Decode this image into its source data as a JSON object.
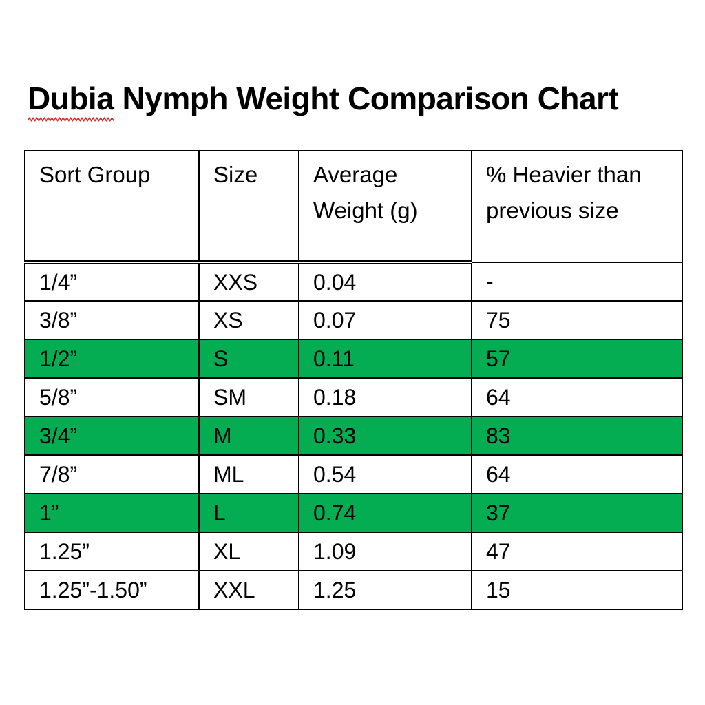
{
  "page": {
    "title": "Dubia Nymph Weight Comparison Chart",
    "title_word1": "Dubia",
    "title_rest": " Nymph Weight Comparison Chart"
  },
  "colors": {
    "background": "#FFFFFF",
    "text": "#000000",
    "table_border": "#000000",
    "highlight_green": "#04AC52",
    "squiggle_red": "#E32B24"
  },
  "chart_data": {
    "type": "table",
    "title": "Dubia Nymph Weight Comparison Chart",
    "columns": [
      "Sort Group",
      "Size",
      "Average Weight (g)",
      "% Heavier than previous size"
    ],
    "rows": [
      {
        "cells": [
          "1/4”",
          "XXS",
          "0.04",
          "-"
        ],
        "highlighted": false
      },
      {
        "cells": [
          "3/8”",
          "XS",
          "0.07",
          "75"
        ],
        "highlighted": false
      },
      {
        "cells": [
          "1/2”",
          "S",
          "0.11",
          "57"
        ],
        "highlighted": true
      },
      {
        "cells": [
          "5/8”",
          "SM",
          "0.18",
          "64"
        ],
        "highlighted": false
      },
      {
        "cells": [
          "3/4”",
          "M",
          "0.33",
          "83"
        ],
        "highlighted": true
      },
      {
        "cells": [
          "7/8”",
          "ML",
          "0.54",
          "64"
        ],
        "highlighted": false
      },
      {
        "cells": [
          "1”",
          "L",
          "0.74",
          "37"
        ],
        "highlighted": true
      },
      {
        "cells": [
          "1.25”",
          "XL",
          "1.09",
          "47"
        ],
        "highlighted": false
      },
      {
        "cells": [
          "1.25”-1.50”",
          "XXL",
          "1.25",
          "15"
        ],
        "highlighted": false
      }
    ],
    "layout_hints": {
      "highlighted_row_background": "#04AC52",
      "header_bottom_border": "double line under first three columns, single under fourth",
      "grid": true
    }
  }
}
